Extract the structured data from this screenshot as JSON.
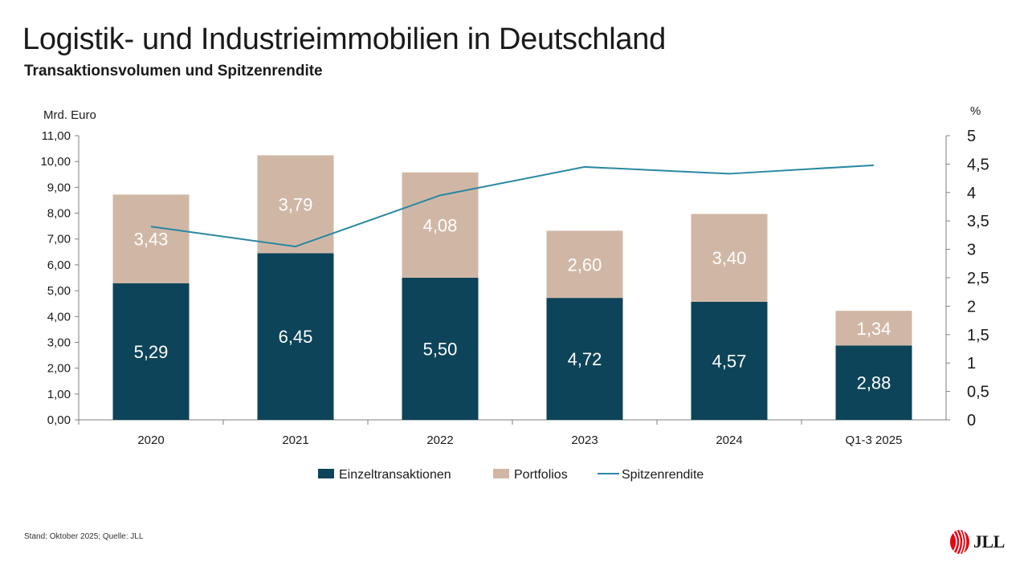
{
  "title": "Logistik- und Industrieimmobilien in Deutschland",
  "subtitle": "Transaktionsvolumen und Spitzenrendite",
  "footnote": "Stand: Oktober 2025; Quelle: JLL",
  "logo": {
    "text": "JLL",
    "icon": "jll-logo-icon"
  },
  "colors": {
    "einzel": "#0d4459",
    "portfolio": "#d0b7a5",
    "line": "#2a87a3",
    "axis": "#7f7f7f",
    "bar_label_on_dark": "#ffffff",
    "bar_label_on_light": "#ffffff"
  },
  "chart_data": {
    "type": "bar",
    "stacked": true,
    "title": "Logistik- und Industrieimmobilien in Deutschland",
    "subtitle": "Transaktionsvolumen und Spitzenrendite",
    "categories": [
      "2020",
      "2021",
      "2022",
      "2023",
      "2024",
      "Q1-3 2025"
    ],
    "ylabel_left": "Mrd. Euro",
    "ylabel_right": "%",
    "ylim_left": [
      0,
      11
    ],
    "ylim_right": [
      0,
      5
    ],
    "yticks_left": [
      "0,00",
      "1,00",
      "2,00",
      "3,00",
      "4,00",
      "5,00",
      "6,00",
      "7,00",
      "8,00",
      "9,00",
      "10,00",
      "11,00"
    ],
    "yticks_right": [
      "0",
      "0,5",
      "1",
      "1,5",
      "2",
      "2,5",
      "3",
      "3,5",
      "4",
      "4,5",
      "5"
    ],
    "legend_position": "bottom",
    "series": [
      {
        "name": "Einzeltransaktionen",
        "kind": "bar",
        "axis": "left",
        "values": [
          5.29,
          6.45,
          5.5,
          4.72,
          4.57,
          2.88
        ],
        "labels": [
          "5,29",
          "6,45",
          "5,50",
          "4,72",
          "4,57",
          "2,88"
        ]
      },
      {
        "name": "Portfolios",
        "kind": "bar",
        "axis": "left",
        "values": [
          3.43,
          3.79,
          4.08,
          2.6,
          3.4,
          1.34
        ],
        "labels": [
          "3,43",
          "3,79",
          "4,08",
          "2,60",
          "3,40",
          "1,34"
        ]
      },
      {
        "name": "Spitzenrendite",
        "kind": "line",
        "axis": "right",
        "values": [
          3.4,
          3.05,
          3.95,
          4.45,
          4.33,
          4.48
        ]
      }
    ]
  }
}
